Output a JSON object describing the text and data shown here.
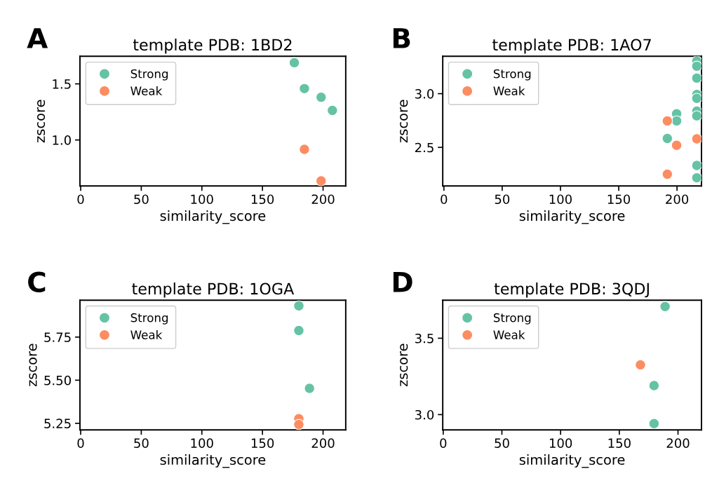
{
  "chart_data": [
    {
      "type": "scatter",
      "title": "template PDB: 1BD2",
      "xlabel": "similarity_score",
      "ylabel": "zscore",
      "annotations": [
        "A"
      ],
      "legend": "top left",
      "marker": "circle",
      "xlim": [
        -0.6,
        218.7
      ],
      "ylim": [
        0.59,
        1.746
      ],
      "xticks": [
        0,
        50,
        100,
        150,
        200
      ],
      "yticks": [
        {
          "value": 1.0,
          "label": "1.0"
        },
        {
          "value": 1.5,
          "label": "1.5"
        }
      ],
      "series": [
        {
          "name": "Strong",
          "color": "#66c2a5",
          "x": [
            176.3,
            184.6,
            198.4,
            207.7
          ],
          "values": [
            1.689,
            1.458,
            1.381,
            1.264
          ]
        },
        {
          "name": "Weak",
          "color": "#fc8d62",
          "x": [
            184.6,
            198.4
          ],
          "values": [
            0.916,
            0.635
          ]
        }
      ]
    },
    {
      "type": "scatter",
      "title": "template PDB: 1AO7",
      "xlabel": "similarity_score",
      "ylabel": "zscore",
      "annotations": [
        "B"
      ],
      "legend": "top left",
      "marker": "circle",
      "xlim": [
        -1,
        221
      ],
      "ylim": [
        2.141,
        3.348
      ],
      "xticks": [
        0,
        50,
        100,
        150,
        200
      ],
      "yticks": [
        {
          "value": 2.5,
          "label": "2.5"
        },
        {
          "value": 3.0,
          "label": "3.0"
        }
      ],
      "series": [
        {
          "name": "Strong",
          "color": "#66c2a5",
          "x": [
            null,
            191.7,
            199.7,
            199.7,
            217,
            217,
            217,
            217,
            217,
            217,
            217,
            null,
            217,
            217
          ],
          "values": [
            null,
            2.583,
            2.813,
            2.746,
            3.304,
            3.256,
            3.145,
            2.993,
            2.956,
            2.837,
            2.793,
            null,
            2.332,
            2.217
          ]
        },
        {
          "name": "Weak",
          "color": "#fc8d62",
          "x": [
            191.7,
            191.7,
            199.7,
            null,
            217
          ],
          "values": [
            2.746,
            2.25,
            2.519,
            null,
            2.58
          ]
        }
      ]
    },
    {
      "type": "scatter",
      "title": "template PDB: 1OGA",
      "xlabel": "similarity_score",
      "ylabel": "zscore",
      "annotations": [
        "C"
      ],
      "legend": "top left",
      "marker": "circle",
      "xlim": [
        -0.6,
        218.7
      ],
      "ylim": [
        5.212,
        5.964
      ],
      "xticks": [
        0,
        50,
        100,
        150,
        200
      ],
      "yticks": [
        {
          "value": 5.25,
          "label": "5.25"
        },
        {
          "value": 5.5,
          "label": "5.50"
        },
        {
          "value": 5.75,
          "label": "5.75"
        }
      ],
      "series": [
        {
          "name": "Strong",
          "color": "#66c2a5",
          "x": [
            180,
            180,
            188.8
          ],
          "values": [
            5.931,
            5.788,
            5.453
          ]
        },
        {
          "name": "Weak",
          "color": "#fc8d62",
          "x": [
            180,
            180
          ],
          "values": [
            5.277,
            5.243
          ]
        }
      ]
    },
    {
      "type": "scatter",
      "title": "template PDB: 3QDJ",
      "xlabel": "similarity_score",
      "ylabel": "zscore",
      "annotations": [
        "D"
      ],
      "legend": "top left",
      "marker": "circle",
      "xlim": [
        -0.4,
        220
      ],
      "ylim": [
        2.9,
        3.749
      ],
      "xticks": [
        0,
        50,
        100,
        150,
        200
      ],
      "yticks": [
        {
          "value": 3.0,
          "label": "3.0"
        },
        {
          "value": 3.5,
          "label": "3.5"
        }
      ],
      "series": [
        {
          "name": "Strong",
          "color": "#66c2a5",
          "x": [
            189,
            179.6,
            179.6
          ],
          "values": [
            3.708,
            3.19,
            2.941
          ]
        },
        {
          "name": "Weak",
          "color": "#fc8d62",
          "x": [
            168
          ],
          "values": [
            3.326
          ]
        }
      ]
    }
  ]
}
